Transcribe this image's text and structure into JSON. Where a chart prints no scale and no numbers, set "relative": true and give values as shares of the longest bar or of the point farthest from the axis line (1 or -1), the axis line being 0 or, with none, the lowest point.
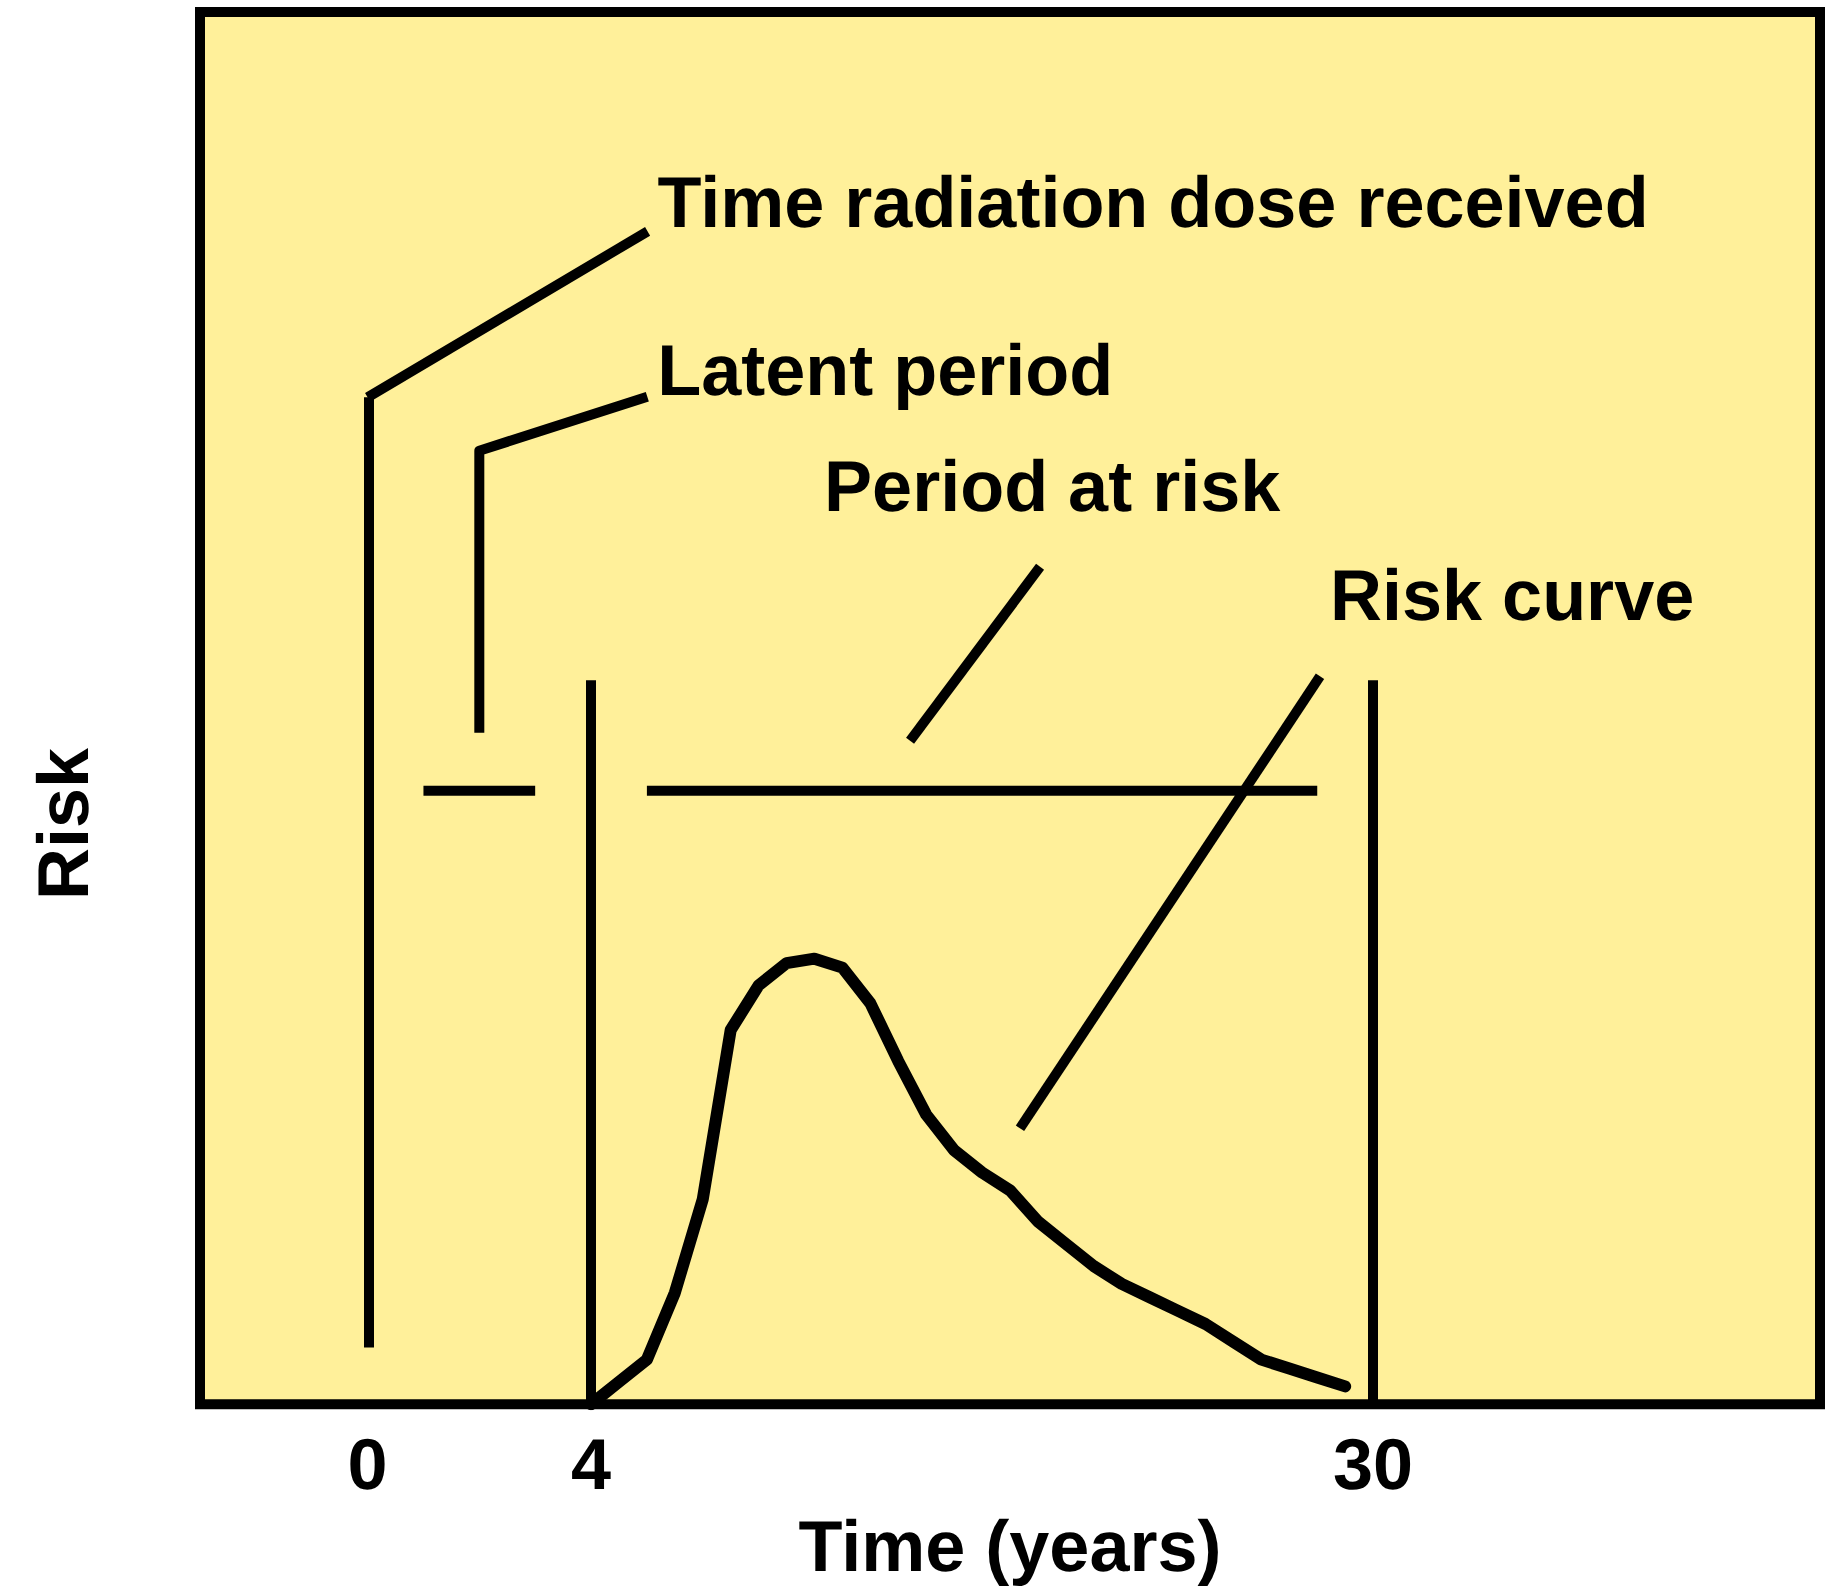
{
  "chart_data": {
    "type": "line",
    "relative": true,
    "xlabel": "Time (years)",
    "ylabel": "Risk",
    "tick_labels": "x",
    "grid": false,
    "marker": "none",
    "categories": [
      null,
      null,
      null,
      null,
      null,
      null,
      "0",
      null,
      null,
      null,
      null,
      null,
      null,
      null,
      "4",
      null,
      null,
      null,
      null,
      null,
      null,
      null,
      null,
      null,
      null,
      null,
      null,
      null,
      null,
      null,
      null,
      null,
      null,
      null,
      null,
      null,
      null,
      null,
      null,
      null,
      null,
      null,
      "30",
      null,
      null,
      null,
      null,
      null,
      null,
      null,
      null,
      null,
      null,
      null,
      null,
      null,
      null,
      null,
      null
    ],
    "series": [
      {
        "name": "Risk curve",
        "color": "#000000",
        "values": [
          null,
          null,
          null,
          null,
          null,
          null,
          null,
          null,
          null,
          null,
          null,
          null,
          null,
          null,
          0,
          0.05,
          0.1,
          0.25,
          0.46,
          0.84,
          0.94,
          0.99,
          1,
          0.98,
          0.9,
          0.77,
          0.65,
          0.57,
          0.52,
          0.48,
          0.41,
          0.36,
          0.31,
          0.27,
          0.24,
          0.21,
          0.18,
          0.14,
          0.1,
          0.08,
          0.06,
          0.04,
          null,
          null,
          null,
          null,
          null,
          null,
          null,
          null,
          null,
          null,
          null,
          null,
          null,
          null,
          null,
          null,
          null
        ]
      }
    ],
    "ref_lines": [
      {
        "axis": "x",
        "value": "0",
        "label": "Time radiation dose received",
        "color": "#000000"
      },
      {
        "axis": "x",
        "value": "4",
        "color": "#000000"
      },
      {
        "axis": "x",
        "value": "30",
        "color": "#000000"
      }
    ],
    "annotations": [
      "Latent period",
      "Period at risk"
    ]
  }
}
